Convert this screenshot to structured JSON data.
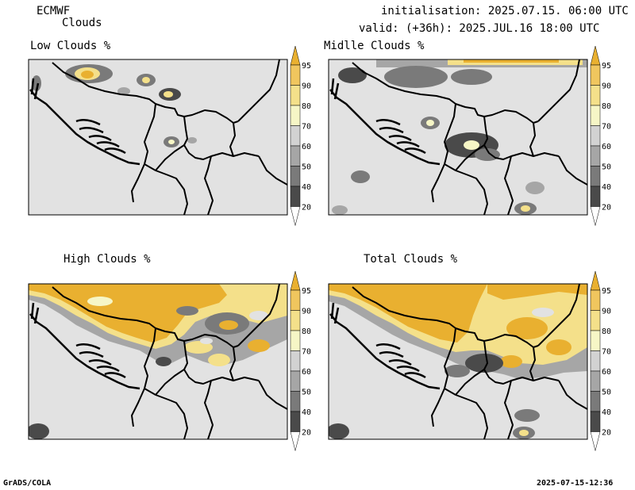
{
  "header": {
    "model": "ECMWF",
    "product": "Clouds",
    "init": "initialisation: 2025.07.15. 06:00 UTC",
    "valid": "valid: (+36h): 2025.JUL.16 18:00 UTC"
  },
  "panels": [
    {
      "title": "Low Clouds %"
    },
    {
      "title": "Midlle Clouds %"
    },
    {
      "title": "High Clouds %"
    },
    {
      "title": "Total Clouds %"
    }
  ],
  "colorbar": {
    "levels": [
      "20",
      "40",
      "50",
      "60",
      "70",
      "80",
      "90",
      "95"
    ],
    "colors": [
      "#ffffff",
      "#4a4a4a",
      "#7a7a7a",
      "#a6a6a6",
      "#d2d2d2",
      "#f6f6c6",
      "#f4e08a",
      "#f0c65e",
      "#e9b030"
    ]
  },
  "footer": {
    "left": "GrADS/COLA",
    "right": "2025-07-15-12:36"
  }
}
